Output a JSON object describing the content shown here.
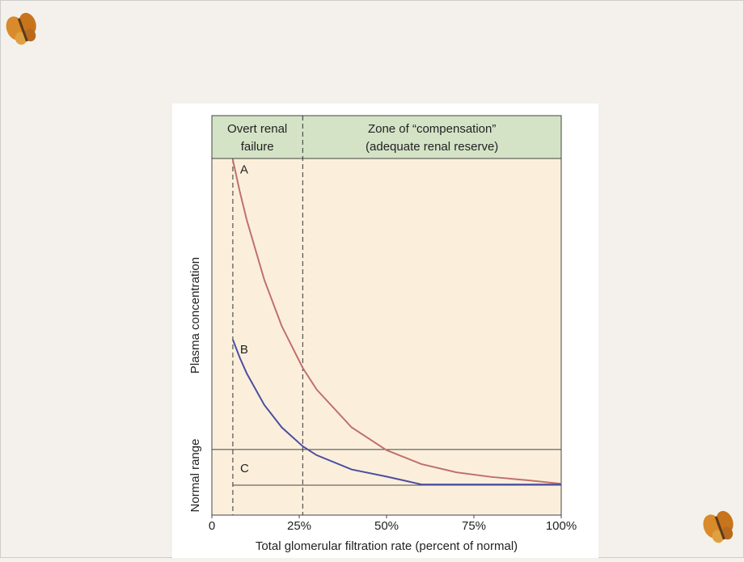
{
  "chart_data": {
    "type": "line",
    "zones": [
      {
        "lines": [
          "Overt renal",
          "failure"
        ]
      },
      {
        "lines": [
          "Zone of “compensation”",
          "(adequate renal reserve)"
        ]
      }
    ],
    "dividers": [
      6,
      26
    ],
    "normal_range": [
      8.4,
      18.4
    ],
    "x_label": "Total glomerular filtration rate (percent of normal)",
    "y_label": "Plasma concentration",
    "range_label": "Normal range",
    "range_annotation": "C",
    "xlim": [
      0,
      100
    ],
    "ylim": [
      0,
      100
    ],
    "xticks": [
      0,
      {
        "value": 25,
        "label": "25%"
      },
      {
        "value": 50,
        "label": "50%"
      },
      {
        "value": 75,
        "label": "75%"
      },
      {
        "value": 100,
        "label": "100%"
      }
    ],
    "x": [
      6,
      8,
      10,
      15,
      20,
      26,
      30,
      40,
      50,
      60,
      70,
      80,
      90,
      100
    ],
    "series": [
      {
        "name": "A",
        "color": "#c0706e",
        "values": [
          99.6,
          90.7,
          82.7,
          66.0,
          53.0,
          41.3,
          35.2,
          24.6,
          18.2,
          14.3,
          12.0,
          10.7,
          9.8,
          8.8
        ]
      },
      {
        "name": "B",
        "color": "#4b4fa0",
        "values": [
          49.2,
          44.1,
          39.7,
          30.9,
          24.6,
          19.3,
          16.8,
          12.8,
          10.8,
          8.6,
          8.6,
          8.6,
          8.6,
          8.6
        ]
      }
    ]
  }
}
